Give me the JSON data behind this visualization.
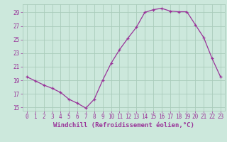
{
  "x": [
    0,
    1,
    2,
    3,
    4,
    5,
    6,
    7,
    8,
    9,
    10,
    11,
    12,
    13,
    14,
    15,
    16,
    17,
    18,
    19,
    20,
    21,
    22,
    23
  ],
  "y": [
    19.5,
    18.9,
    18.3,
    17.8,
    17.2,
    16.2,
    15.6,
    14.9,
    16.2,
    19.0,
    21.5,
    23.5,
    25.2,
    26.8,
    29.0,
    29.4,
    29.6,
    29.2,
    29.1,
    29.1,
    27.2,
    25.3,
    22.2,
    19.5
  ],
  "line_color": "#993399",
  "marker": "+",
  "bg_color": "#cce8dc",
  "grid_color": "#aaccbb",
  "xlabel": "Windchill (Refroidissement éolien,°C)",
  "xlim": [
    -0.5,
    23.5
  ],
  "ylim": [
    14.5,
    30.2
  ],
  "yticks": [
    15,
    17,
    19,
    21,
    23,
    25,
    27,
    29
  ],
  "xticks": [
    0,
    1,
    2,
    3,
    4,
    5,
    6,
    7,
    8,
    9,
    10,
    11,
    12,
    13,
    14,
    15,
    16,
    17,
    18,
    19,
    20,
    21,
    22,
    23
  ],
  "xlabel_color": "#993399",
  "tick_color": "#993399",
  "tick_fontsize": 5.5,
  "xlabel_fontsize": 6.5
}
